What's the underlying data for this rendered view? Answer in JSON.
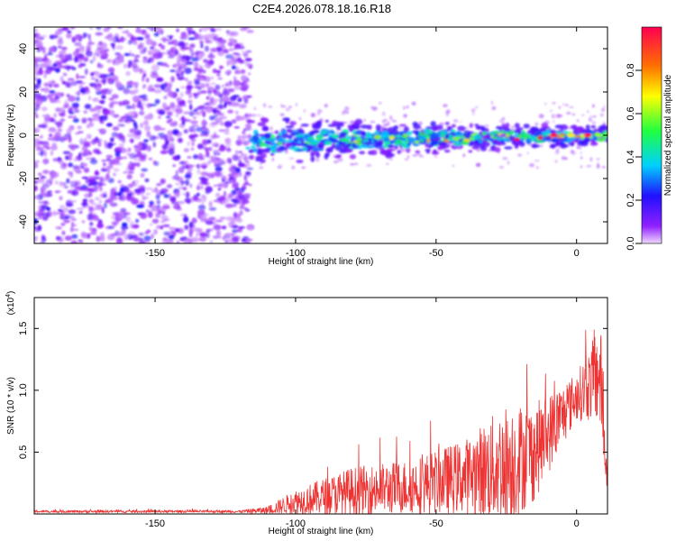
{
  "title": "C2E4.2026.078.18.16.R18",
  "chart_data": [
    {
      "type": "heatmap",
      "name": "spectrogram",
      "xlabel": "Height of straight line (km)",
      "ylabel": "Frequency (Hz)",
      "xlim": [
        -193,
        11
      ],
      "ylim": [
        -50,
        50
      ],
      "xticks": [
        -150,
        -100,
        -50,
        0
      ],
      "yticks": [
        -40,
        -20,
        0,
        20,
        40
      ],
      "noise_region_x": [
        -193,
        -118
      ],
      "signal_track": {
        "x_start": -118,
        "x_end": 11,
        "center_frequency_hz": 0,
        "start_frequency_hz": -3,
        "end_frequency_hz": 0,
        "amplitude_start": 0.25,
        "amplitude_end": 0.95
      },
      "colorbar": {
        "label": "Normalized spectral amplitude",
        "range": [
          0,
          1
        ],
        "ticks": [
          0.0,
          0.2,
          0.4,
          0.6,
          0.8
        ]
      }
    },
    {
      "type": "line",
      "name": "snr",
      "xlabel": "Height of straight line (km)",
      "ylabel": "SNR (10 * v/v)",
      "multiplier_label": "(x10",
      "multiplier_exponent": "4",
      "xlim": [
        -193,
        11
      ],
      "ylim": [
        0,
        1.75
      ],
      "xticks": [
        -150,
        -100,
        -50,
        0
      ],
      "yticks": [
        0.5,
        1.0,
        1.5
      ],
      "color": "#ee3333",
      "envelope": {
        "x": [
          -193,
          -120,
          -110,
          -100,
          -80,
          -60,
          -40,
          -25,
          -15,
          -5,
          0,
          5,
          8,
          9,
          10,
          11
        ],
        "mean": [
          0.02,
          0.02,
          0.03,
          0.1,
          0.18,
          0.22,
          0.3,
          0.4,
          0.5,
          0.8,
          0.95,
          1.05,
          1.15,
          1.0,
          0.5,
          0.3
        ],
        "amp": [
          0.01,
          0.01,
          0.03,
          0.1,
          0.2,
          0.22,
          0.3,
          0.5,
          0.4,
          0.25,
          0.2,
          0.3,
          0.45,
          0.4,
          0.25,
          0.1
        ]
      }
    }
  ]
}
